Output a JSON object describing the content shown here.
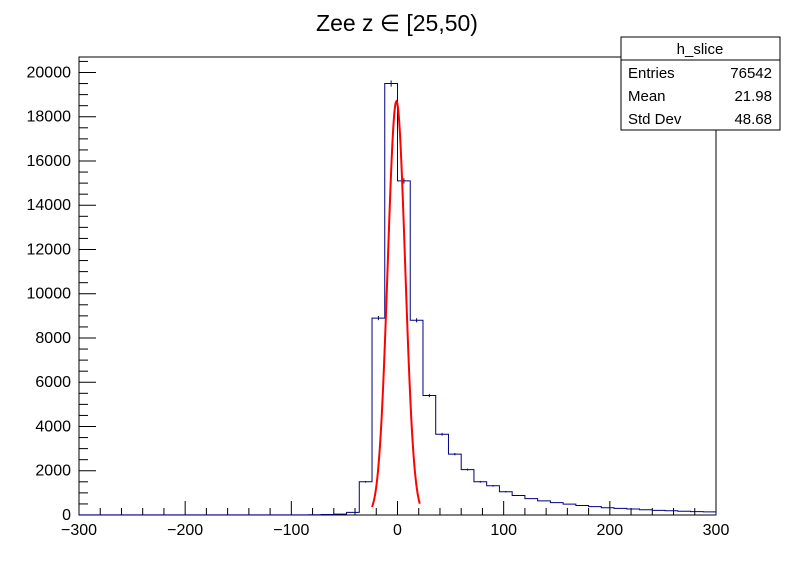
{
  "chart_data": {
    "type": "bar",
    "title": "Zee z ∈ [25,50)",
    "xlim": [
      -300,
      300
    ],
    "ylim": [
      0,
      20700
    ],
    "bin_width": 12,
    "x_ticks": [
      "−300",
      "−200",
      "−100",
      "0",
      "100",
      "200",
      "300"
    ],
    "y_ticks": [
      "0",
      "2000",
      "4000",
      "6000",
      "8000",
      "10000",
      "12000",
      "14000",
      "16000",
      "18000",
      "20000"
    ],
    "x_tick_values": [
      -300,
      -200,
      -100,
      0,
      100,
      200,
      300
    ],
    "y_tick_values": [
      0,
      2000,
      4000,
      6000,
      8000,
      10000,
      12000,
      14000,
      16000,
      18000,
      20000
    ],
    "bin_centers": [
      -294,
      -282,
      -270,
      -258,
      -246,
      -234,
      -222,
      -210,
      -198,
      -186,
      -174,
      -162,
      -150,
      -138,
      -126,
      -114,
      -102,
      -90,
      -78,
      -66,
      -54,
      -42,
      -30,
      -18,
      -6,
      6,
      18,
      30,
      42,
      54,
      66,
      78,
      90,
      102,
      114,
      126,
      138,
      150,
      162,
      174,
      186,
      198,
      210,
      222,
      234,
      246,
      258,
      270,
      282,
      294
    ],
    "values": [
      5,
      5,
      5,
      5,
      5,
      5,
      5,
      5,
      5,
      5,
      5,
      5,
      5,
      5,
      5,
      5,
      5,
      5,
      10,
      20,
      40,
      120,
      1500,
      8900,
      19500,
      15100,
      8800,
      5400,
      3650,
      2750,
      2050,
      1500,
      1320,
      1050,
      880,
      740,
      640,
      560,
      490,
      430,
      380,
      330,
      300,
      270,
      240,
      210,
      190,
      170,
      155,
      140
    ],
    "fit": {
      "name": "gaus",
      "constant": 18700,
      "mean": -1,
      "sigma": 8.2,
      "range": [
        -24,
        21
      ],
      "color": "#ff0000"
    },
    "line_color": "#000080",
    "stats_box": {
      "title": "h_slice",
      "rows": [
        {
          "label": "Entries",
          "value": "76542"
        },
        {
          "label": "Mean",
          "value": "21.98"
        },
        {
          "label": "Std Dev",
          "value": "48.68"
        }
      ]
    },
    "legend_position": "top-right",
    "grid": false
  }
}
